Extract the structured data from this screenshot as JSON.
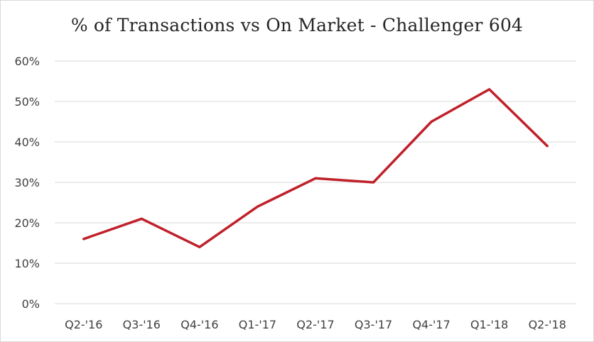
{
  "chart_data": {
    "type": "line",
    "title": "% of Transactions vs On Market  - Challenger 604",
    "categories": [
      "Q2-'16",
      "Q3-'16",
      "Q4-'16",
      "Q1-'17",
      "Q2-'17",
      "Q3-'17",
      "Q4-'17",
      "Q1-'18",
      "Q2-'18"
    ],
    "series": [
      {
        "values": [
          16,
          21,
          14,
          24,
          31,
          30,
          45,
          53,
          39
        ]
      }
    ],
    "y_tick_labels": [
      "0%",
      "10%",
      "20%",
      "30%",
      "40%",
      "50%",
      "60%"
    ],
    "ylim": [
      0,
      60
    ],
    "y_step": 10,
    "grid": true,
    "legend": "none",
    "colors": {
      "line": "#c0202a",
      "grid": "#d9d9d9",
      "text": "#404040"
    }
  }
}
